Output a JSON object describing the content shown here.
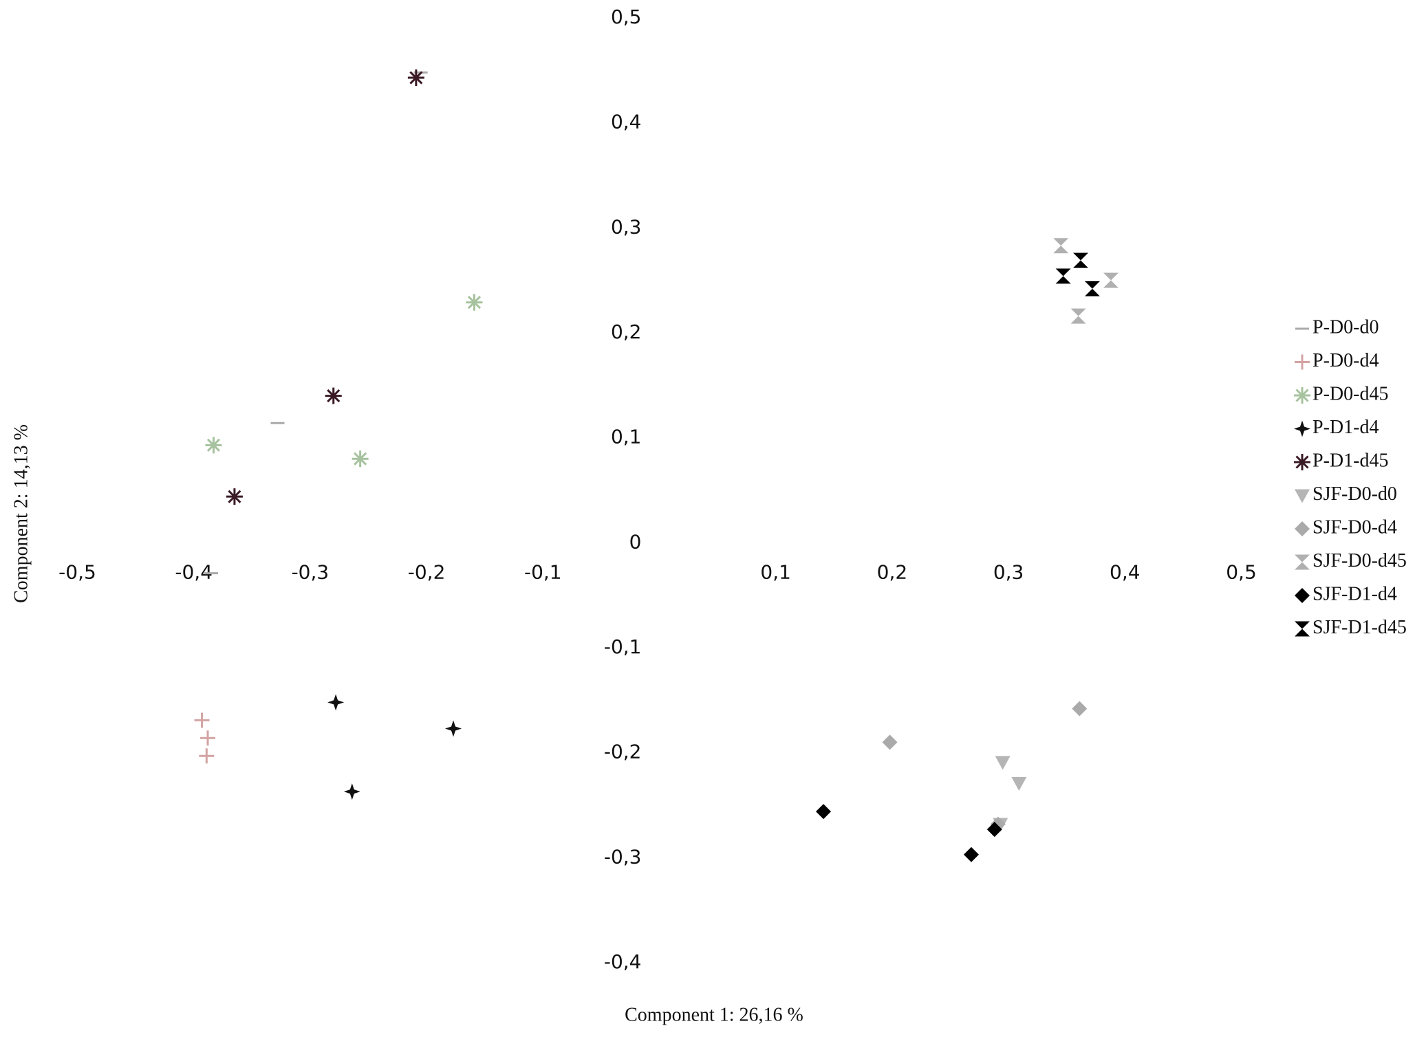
{
  "chart_data": {
    "type": "scatter",
    "x_label": "Component 1: 26,16 %",
    "y_label": "Component 2: 14,13 %",
    "xlim": [
      -0.5,
      0.5
    ],
    "ylim": [
      -0.4,
      0.5
    ],
    "xticks": [
      {
        "value": -0.5,
        "label": "-0,5"
      },
      {
        "value": -0.4,
        "label": "-0,4"
      },
      {
        "value": -0.3,
        "label": "-0,3"
      },
      {
        "value": -0.2,
        "label": "-0,2"
      },
      {
        "value": -0.1,
        "label": "-0,1"
      },
      {
        "value": 0.1,
        "label": "0,1"
      },
      {
        "value": 0.2,
        "label": "0,2"
      },
      {
        "value": 0.3,
        "label": "0,3"
      },
      {
        "value": 0.4,
        "label": "0,4"
      },
      {
        "value": 0.5,
        "label": "0,5"
      }
    ],
    "yticks": [
      {
        "value": -0.4,
        "label": "-0,4"
      },
      {
        "value": -0.3,
        "label": "-0,3"
      },
      {
        "value": -0.2,
        "label": "-0,2"
      },
      {
        "value": -0.1,
        "label": "-0,1"
      },
      0,
      {
        "value": 0.1,
        "label": "0,1"
      },
      {
        "value": 0.2,
        "label": "0,2"
      },
      {
        "value": 0.3,
        "label": "0,3"
      },
      {
        "value": 0.4,
        "label": "0,4"
      },
      {
        "value": 0.5,
        "label": "0,5"
      }
    ],
    "legend": "right",
    "series": [
      {
        "name": "P-D0-d0",
        "marker": "dash",
        "color": "#aaaaaa",
        "x": [
          -0.328,
          -0.385,
          -0.205
        ],
        "y": [
          0.114,
          -0.029,
          0.448
        ]
      },
      {
        "name": "P-D0-d4",
        "marker": "plus",
        "color": "#d4a3a3",
        "x": [
          -0.393,
          -0.388,
          -0.389
        ],
        "y": [
          -0.169,
          -0.186,
          -0.203
        ]
      },
      {
        "name": "P-D0-d45",
        "marker": "asterisk",
        "color": "#a6c29e",
        "x": [
          -0.159,
          -0.383,
          -0.257
        ],
        "y": [
          0.229,
          0.093,
          0.08
        ]
      },
      {
        "name": "P-D1-d4",
        "marker": "star",
        "color": "#111111",
        "x": [
          -0.278,
          -0.177,
          -0.264
        ],
        "y": [
          -0.152,
          -0.177,
          -0.237
        ]
      },
      {
        "name": "P-D1-d45",
        "marker": "asterisk",
        "color": "#3a1a24",
        "x": [
          -0.209,
          -0.28,
          -0.365
        ],
        "y": [
          0.443,
          0.14,
          0.044
        ]
      },
      {
        "name": "SJF-D0-d0",
        "marker": "triangle",
        "color": "#b5b5b5",
        "x": [
          0.295,
          0.309,
          0.293
        ],
        "y": [
          -0.209,
          -0.229,
          -0.268
        ]
      },
      {
        "name": "SJF-D0-d4",
        "marker": "diamond",
        "color": "#aaaaaa",
        "x": [
          0.361,
          0.198,
          0.291
        ],
        "y": [
          -0.158,
          -0.19,
          -0.268
        ]
      },
      {
        "name": "SJF-D0-d45",
        "marker": "hourglass",
        "color": "#b0b0b0",
        "x": [
          0.345,
          0.388,
          0.36
        ],
        "y": [
          0.283,
          0.25,
          0.216
        ]
      },
      {
        "name": "SJF-D1-d4",
        "marker": "diamond",
        "color": "#000000",
        "x": [
          0.141,
          0.268,
          0.288
        ],
        "y": [
          -0.256,
          -0.297,
          -0.273
        ]
      },
      {
        "name": "SJF-D1-d45",
        "marker": "hourglass",
        "color": "#000000",
        "x": [
          0.362,
          0.347,
          0.372
        ],
        "y": [
          0.269,
          0.254,
          0.242
        ]
      }
    ]
  }
}
